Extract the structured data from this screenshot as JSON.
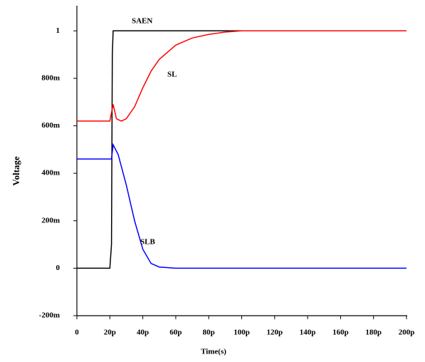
{
  "chart_data": {
    "type": "line",
    "xlabel": "Time(s)",
    "ylabel": "Voltage",
    "xlim": [
      0,
      2e-10
    ],
    "ylim": [
      -0.2,
      1.1
    ],
    "xticks": [
      0,
      {
        "value": 2e-11,
        "label": "20p"
      },
      {
        "value": 4e-11,
        "label": "40p"
      },
      {
        "value": 6e-11,
        "label": "60p"
      },
      {
        "value": 8e-11,
        "label": "80p"
      },
      {
        "value": 1e-10,
        "label": "100p"
      },
      {
        "value": 1.2e-10,
        "label": "120p"
      },
      {
        "value": 1.4e-10,
        "label": "140p"
      },
      {
        "value": 1.6e-10,
        "label": "160p"
      },
      {
        "value": 1.8e-10,
        "label": "180p"
      },
      {
        "value": 2e-10,
        "label": "200p"
      }
    ],
    "yticks": [
      {
        "value": -0.2,
        "label": "-200m"
      },
      0,
      {
        "value": 0.2,
        "label": "200m"
      },
      {
        "value": 0.4,
        "label": "400m"
      },
      {
        "value": 0.6,
        "label": "600m"
      },
      {
        "value": 0.8,
        "label": "800m"
      },
      1
    ],
    "series": [
      {
        "name": "SAEN",
        "color": "#000000",
        "x": [
          0,
          2e-11,
          2.1e-11,
          2.15e-11,
          2.2e-11,
          1e-10
        ],
        "values": [
          0,
          0,
          0.1,
          0.9,
          1.0,
          1.0
        ]
      },
      {
        "name": "SL",
        "color": "#ff0000",
        "x": [
          0,
          2e-11,
          2.2e-11,
          2.4e-11,
          2.7e-11,
          3e-11,
          3.5e-11,
          4e-11,
          4.5e-11,
          5e-11,
          6e-11,
          7e-11,
          8e-11,
          9e-11,
          1e-10,
          2e-10
        ],
        "values": [
          0.62,
          0.62,
          0.69,
          0.63,
          0.62,
          0.63,
          0.68,
          0.76,
          0.83,
          0.88,
          0.94,
          0.97,
          0.985,
          0.995,
          1.0,
          1.0
        ]
      },
      {
        "name": "SLB",
        "color": "#0000ff",
        "x": [
          0,
          2.1e-11,
          2.2e-11,
          2.5e-11,
          3e-11,
          3.5e-11,
          4e-11,
          4.5e-11,
          5e-11,
          6e-11,
          2e-10
        ],
        "values": [
          0.46,
          0.46,
          0.52,
          0.48,
          0.35,
          0.2,
          0.08,
          0.02,
          0.005,
          0,
          0
        ]
      }
    ]
  }
}
